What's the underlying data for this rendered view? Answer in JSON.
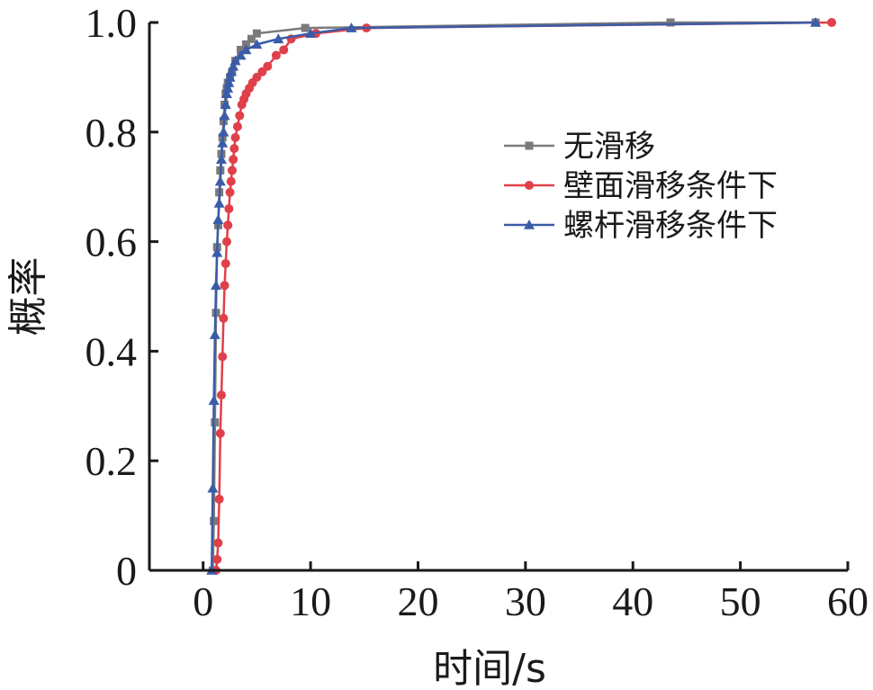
{
  "chart_data": {
    "type": "line",
    "title": "",
    "xlabel": "时间/s",
    "ylabel": "概率",
    "xlim": [
      -5,
      60
    ],
    "ylim": [
      0,
      1.0
    ],
    "xticks": [
      0,
      10,
      20,
      30,
      40,
      50,
      60
    ],
    "xtick_labels": [
      "0",
      "10",
      "20",
      "30",
      "40",
      "50",
      "60"
    ],
    "yticks": [
      0,
      0.2,
      0.4,
      0.6,
      0.8,
      1.0
    ],
    "ytick_labels": [
      "0",
      "0.2",
      "0.4",
      "0.6",
      "0.8",
      "1.0"
    ],
    "grid": false,
    "legend_position": "right-middle",
    "series": [
      {
        "name": "无滑移",
        "color": "#7a7a7a",
        "marker": "square",
        "x": [
          0.9,
          1.0,
          1.1,
          1.2,
          1.3,
          1.4,
          1.5,
          1.6,
          1.7,
          1.8,
          1.9,
          2.0,
          2.1,
          2.2,
          2.3,
          2.5,
          2.7,
          3.0,
          3.5,
          4.0,
          4.5,
          5.0,
          9.5,
          43.5,
          57.0
        ],
        "y": [
          0.0,
          0.09,
          0.27,
          0.47,
          0.59,
          0.63,
          0.69,
          0.73,
          0.76,
          0.79,
          0.82,
          0.85,
          0.87,
          0.88,
          0.89,
          0.9,
          0.91,
          0.93,
          0.95,
          0.96,
          0.97,
          0.98,
          0.99,
          1.0,
          1.0
        ]
      },
      {
        "name": "壁面滑移条件下",
        "color": "#e0404a",
        "marker": "circle",
        "x": [
          1.2,
          1.3,
          1.4,
          1.5,
          1.6,
          1.7,
          1.8,
          1.9,
          2.0,
          2.1,
          2.2,
          2.3,
          2.4,
          2.5,
          2.6,
          2.7,
          2.8,
          2.9,
          3.0,
          3.2,
          3.4,
          3.6,
          3.8,
          4.0,
          4.3,
          4.6,
          5.0,
          5.5,
          6.0,
          6.8,
          7.5,
          8.2,
          10.5,
          15.2,
          58.5
        ],
        "y": [
          0.0,
          0.02,
          0.05,
          0.13,
          0.25,
          0.32,
          0.39,
          0.46,
          0.52,
          0.56,
          0.6,
          0.63,
          0.66,
          0.69,
          0.71,
          0.73,
          0.75,
          0.77,
          0.79,
          0.81,
          0.83,
          0.85,
          0.86,
          0.87,
          0.88,
          0.89,
          0.9,
          0.91,
          0.92,
          0.94,
          0.95,
          0.97,
          0.98,
          0.99,
          1.0
        ]
      },
      {
        "name": "螺杆滑移条件下",
        "color": "#3a5ca8",
        "marker": "triangle",
        "x": [
          0.8,
          0.9,
          1.0,
          1.1,
          1.2,
          1.3,
          1.4,
          1.5,
          1.6,
          1.7,
          1.8,
          1.9,
          2.0,
          2.1,
          2.2,
          2.3,
          2.4,
          2.5,
          2.6,
          2.8,
          3.0,
          3.5,
          4.0,
          5.0,
          7.0,
          10.0,
          13.8,
          57.0
        ],
        "y": [
          0.0,
          0.15,
          0.31,
          0.43,
          0.52,
          0.58,
          0.64,
          0.67,
          0.71,
          0.75,
          0.78,
          0.8,
          0.83,
          0.85,
          0.87,
          0.88,
          0.89,
          0.9,
          0.91,
          0.92,
          0.93,
          0.94,
          0.95,
          0.96,
          0.97,
          0.98,
          0.99,
          1.0
        ]
      }
    ]
  }
}
